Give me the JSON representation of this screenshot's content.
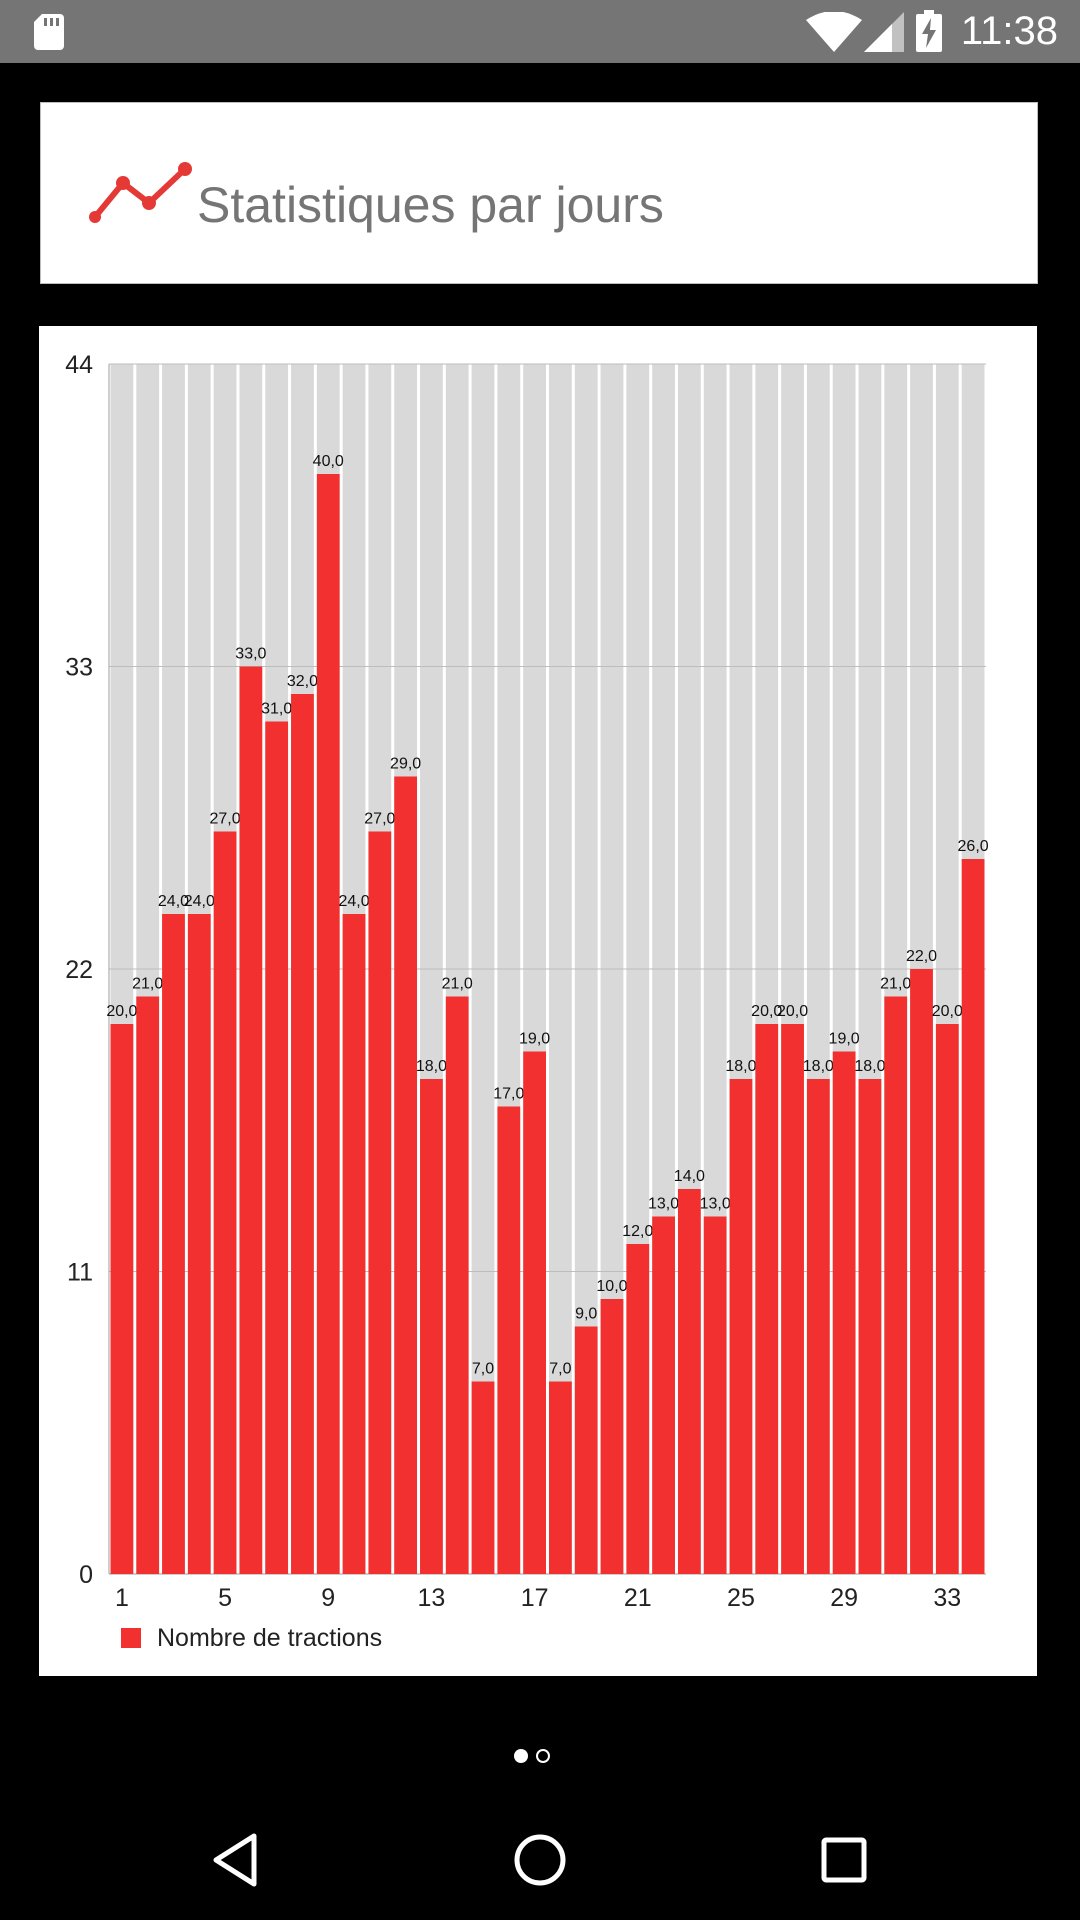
{
  "status_bar": {
    "time": "11:38",
    "icons": [
      "sd-card-icon",
      "wifi-icon",
      "signal-icon",
      "battery-charging-icon"
    ]
  },
  "header": {
    "title": "Statistiques par jours",
    "icon": "line-chart-icon",
    "accent_color": "#e53935"
  },
  "chart_data": {
    "type": "bar",
    "title": "",
    "xlabel": "",
    "ylabel": "",
    "categories": [
      1,
      2,
      3,
      4,
      5,
      6,
      7,
      8,
      9,
      10,
      11,
      12,
      13,
      14,
      15,
      16,
      17,
      18,
      19,
      20,
      21,
      22,
      23,
      24,
      25,
      26,
      27,
      28,
      29,
      30,
      31,
      32,
      33,
      34
    ],
    "x_tick_labels": [
      "1",
      "5",
      "9",
      "13",
      "17",
      "21",
      "25",
      "29",
      "33"
    ],
    "y_tick_labels": [
      "0",
      "11",
      "22",
      "33",
      "44"
    ],
    "ylim": [
      0,
      44
    ],
    "grid": true,
    "series": [
      {
        "name": "Nombre de tractions",
        "color": "#f23030",
        "values": [
          20,
          21,
          24,
          24,
          27,
          33,
          31,
          32,
          40,
          24,
          27,
          29,
          18,
          21,
          7,
          17,
          19,
          7,
          9,
          10,
          12,
          13,
          14,
          13,
          18,
          20,
          20,
          18,
          19,
          18,
          21,
          22,
          20,
          26
        ],
        "value_labels": [
          "20,0",
          "21,0",
          "24,0",
          "24,0",
          "27,0",
          "33,0",
          "31,0",
          "32,0",
          "40,0",
          "24,0",
          "27,0",
          "29,0",
          "18,0",
          "21,0",
          "7,0",
          "17,0",
          "19,0",
          "7,0",
          "9,0",
          "10,0",
          "12,0",
          "13,0",
          "14,0",
          "13,0",
          "18,0",
          "20,0",
          "20,0",
          "18,0",
          "19,0",
          "18,0",
          "21,0",
          "22,0",
          "20,0",
          "26,0"
        ]
      }
    ],
    "background_bar_color": "#d9d9d9",
    "legend": {
      "position": "bottom-left",
      "label": "Nombre de tractions"
    }
  },
  "pager": {
    "pages": 2,
    "current": 1
  },
  "nav_bar": {
    "buttons": [
      "back-button",
      "home-button",
      "recents-button"
    ]
  }
}
